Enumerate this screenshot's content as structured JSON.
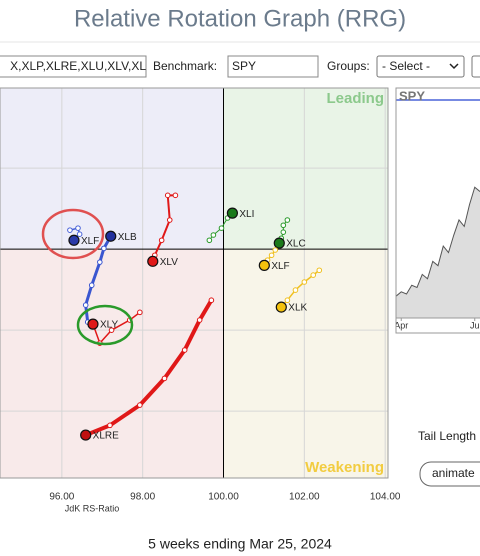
{
  "header": {
    "title": "Relative Rotation Graph (RRG)"
  },
  "controls": {
    "symbols": "X,XLP,XLRE,XLU,XLV,XL",
    "benchmark_label": "Benchmark:",
    "benchmark": "SPY",
    "groups_label": "Groups:",
    "groups": "- Select -",
    "tail_label": "Tail Length",
    "animate": "animate"
  },
  "footer": "5 weeks ending Mar 25, 2024",
  "chart_data": [
    {
      "type": "rrg",
      "xlabel": "JdK RS-Ratio",
      "xlim": [
        94.47,
        104.07
      ],
      "ylim": [
        94.35,
        103.98
      ],
      "xticks": [
        {
          "value": 96,
          "label": "96.00"
        },
        {
          "value": 98,
          "label": "98.00"
        },
        {
          "value": 100,
          "label": "100.00"
        },
        {
          "value": 102,
          "label": "102.00"
        },
        {
          "value": 104,
          "label": "104.00"
        }
      ],
      "yticks": [
        96,
        98,
        102
      ],
      "center": {
        "x": 100,
        "y": 100
      },
      "quadrants": {
        "top_right": "Leading",
        "bottom_right": "Weakening"
      },
      "quadrant_colors": {
        "top_left": "#ededf8",
        "top_right": "#e9f4e7",
        "bottom_right": "#f8f5e9",
        "bottom_left": "#f8eaea"
      },
      "series": [
        {
          "name": "XLF",
          "color": "#4a63d8",
          "head": "#2a3aa8",
          "line_width": 1.5,
          "x": [
            96.2,
            96.4,
            96.44,
            96.3
          ],
          "y": [
            100.47,
            100.52,
            100.37,
            100.22
          ]
        },
        {
          "name": "XLB",
          "color": "#3a56d0",
          "head": "#22309c",
          "line_width": 3,
          "x": [
            96.64,
            96.59,
            96.74,
            96.94,
            97.04,
            97.21
          ],
          "y": [
            98.2,
            98.62,
            99.11,
            99.68,
            100.02,
            100.32
          ]
        },
        {
          "name": "XLY",
          "color": "#e01818",
          "head": "#e01818",
          "line_width": 1.5,
          "x": [
            97.93,
            97.68,
            97.23,
            96.94,
            96.77
          ],
          "y": [
            98.44,
            98.25,
            98.0,
            97.68,
            98.15
          ]
        },
        {
          "name": "XLV",
          "color": "#e01818",
          "head": "#e01818",
          "line_width": 2,
          "x": [
            98.81,
            98.62,
            98.67,
            98.47,
            98.3,
            98.25
          ],
          "y": [
            101.33,
            101.33,
            100.72,
            100.22,
            99.85,
            99.7
          ]
        },
        {
          "name": "XLRE",
          "color": "#e01818",
          "head": "#c01010",
          "line_width": 4,
          "x": [
            99.7,
            99.41,
            99.04,
            98.54,
            97.93,
            97.19,
            96.59
          ],
          "y": [
            98.74,
            98.25,
            97.51,
            96.81,
            96.15,
            95.65,
            95.41
          ]
        },
        {
          "name": "XLI",
          "color": "#2a9a2a",
          "head": "#1a7a1a",
          "line_width": 1,
          "x": [
            99.65,
            99.75,
            99.95,
            100.1,
            100.22
          ],
          "y": [
            100.22,
            100.35,
            100.52,
            100.77,
            100.89
          ]
        },
        {
          "name": "XLC",
          "color": "#2a9a2a",
          "head": "#1a7a1a",
          "line_width": 1,
          "x": [
            101.58,
            101.48,
            101.48,
            101.43,
            101.38
          ],
          "y": [
            100.72,
            100.59,
            100.42,
            100.27,
            100.15
          ]
        },
        {
          "name": "XLF",
          "color": "#f0c020",
          "head": "#f4c20d",
          "line_width": 1.5,
          "x": [
            101.28,
            101.19,
            101.09,
            101.01
          ],
          "y": [
            99.98,
            99.85,
            99.73,
            99.6
          ]
        },
        {
          "name": "XLK",
          "color": "#f0c020",
          "head": "#f4c20d",
          "line_width": 1.5,
          "x": [
            102.37,
            102.22,
            102.0,
            101.78,
            101.58,
            101.43
          ],
          "y": [
            99.48,
            99.36,
            99.19,
            98.99,
            98.74,
            98.57
          ]
        }
      ]
    },
    {
      "type": "area",
      "title": "SPY",
      "color": "#555555",
      "fill": "#dddddd",
      "x": [
        0,
        1,
        2,
        3,
        4,
        5,
        6,
        7,
        8,
        9,
        10,
        11,
        12,
        13,
        14,
        15,
        16
      ],
      "values": [
        10,
        12,
        11,
        15,
        14,
        20,
        18,
        26,
        24,
        33,
        30,
        38,
        45,
        42,
        52,
        60,
        58
      ],
      "xlim": [
        0,
        16
      ],
      "ylim": [
        0,
        100
      ],
      "xticks": [
        {
          "value": 1,
          "label": "Apr"
        },
        {
          "value": 15,
          "label": "Ju"
        }
      ]
    }
  ]
}
